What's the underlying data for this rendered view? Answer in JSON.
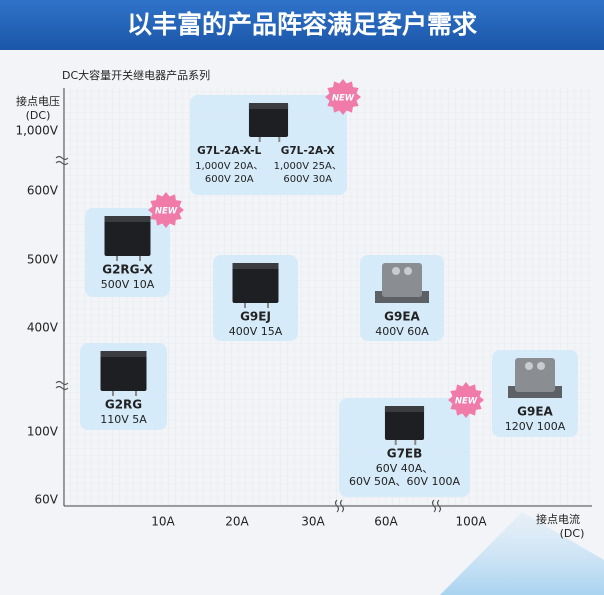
{
  "header": {
    "title": "以丰富的产品阵容满足客户需求"
  },
  "subtitle": "DC大容量开关继电器产品系列",
  "y_axis": {
    "title": "接点电压",
    "unit": "(DC)",
    "labels": [
      "1,000V",
      "600V",
      "500V",
      "400V",
      "100V",
      "60V"
    ]
  },
  "x_axis": {
    "title": "接点电流",
    "unit": "(DC)",
    "labels": [
      "10A",
      "20A",
      "30A",
      "60A",
      "100A"
    ]
  },
  "products": [
    {
      "models": [
        {
          "name": "G7L-2A-X-L",
          "specs": [
            "1,000V 20A、",
            "600V 20A"
          ]
        },
        {
          "name": "G7L-2A-X",
          "specs": [
            "1,000V 25A、",
            "600V 30A"
          ]
        }
      ],
      "badge": "NEW"
    },
    {
      "models": [
        {
          "name": "G2RG-X",
          "specs": [
            "500V 10A"
          ]
        }
      ],
      "badge": "NEW"
    },
    {
      "models": [
        {
          "name": "G9EJ",
          "specs": [
            "400V 15A"
          ]
        }
      ]
    },
    {
      "models": [
        {
          "name": "G9EA",
          "specs": [
            "400V 60A"
          ]
        }
      ]
    },
    {
      "models": [
        {
          "name": "G2RG",
          "specs": [
            "110V 5A"
          ]
        }
      ]
    },
    {
      "models": [
        {
          "name": "G7EB",
          "specs": [
            "60V 40A、",
            "60V 50A、60V 100A"
          ]
        }
      ],
      "badge": "NEW"
    },
    {
      "models": [
        {
          "name": "G9EA",
          "specs": [
            "120V 100A"
          ]
        }
      ]
    }
  ]
}
